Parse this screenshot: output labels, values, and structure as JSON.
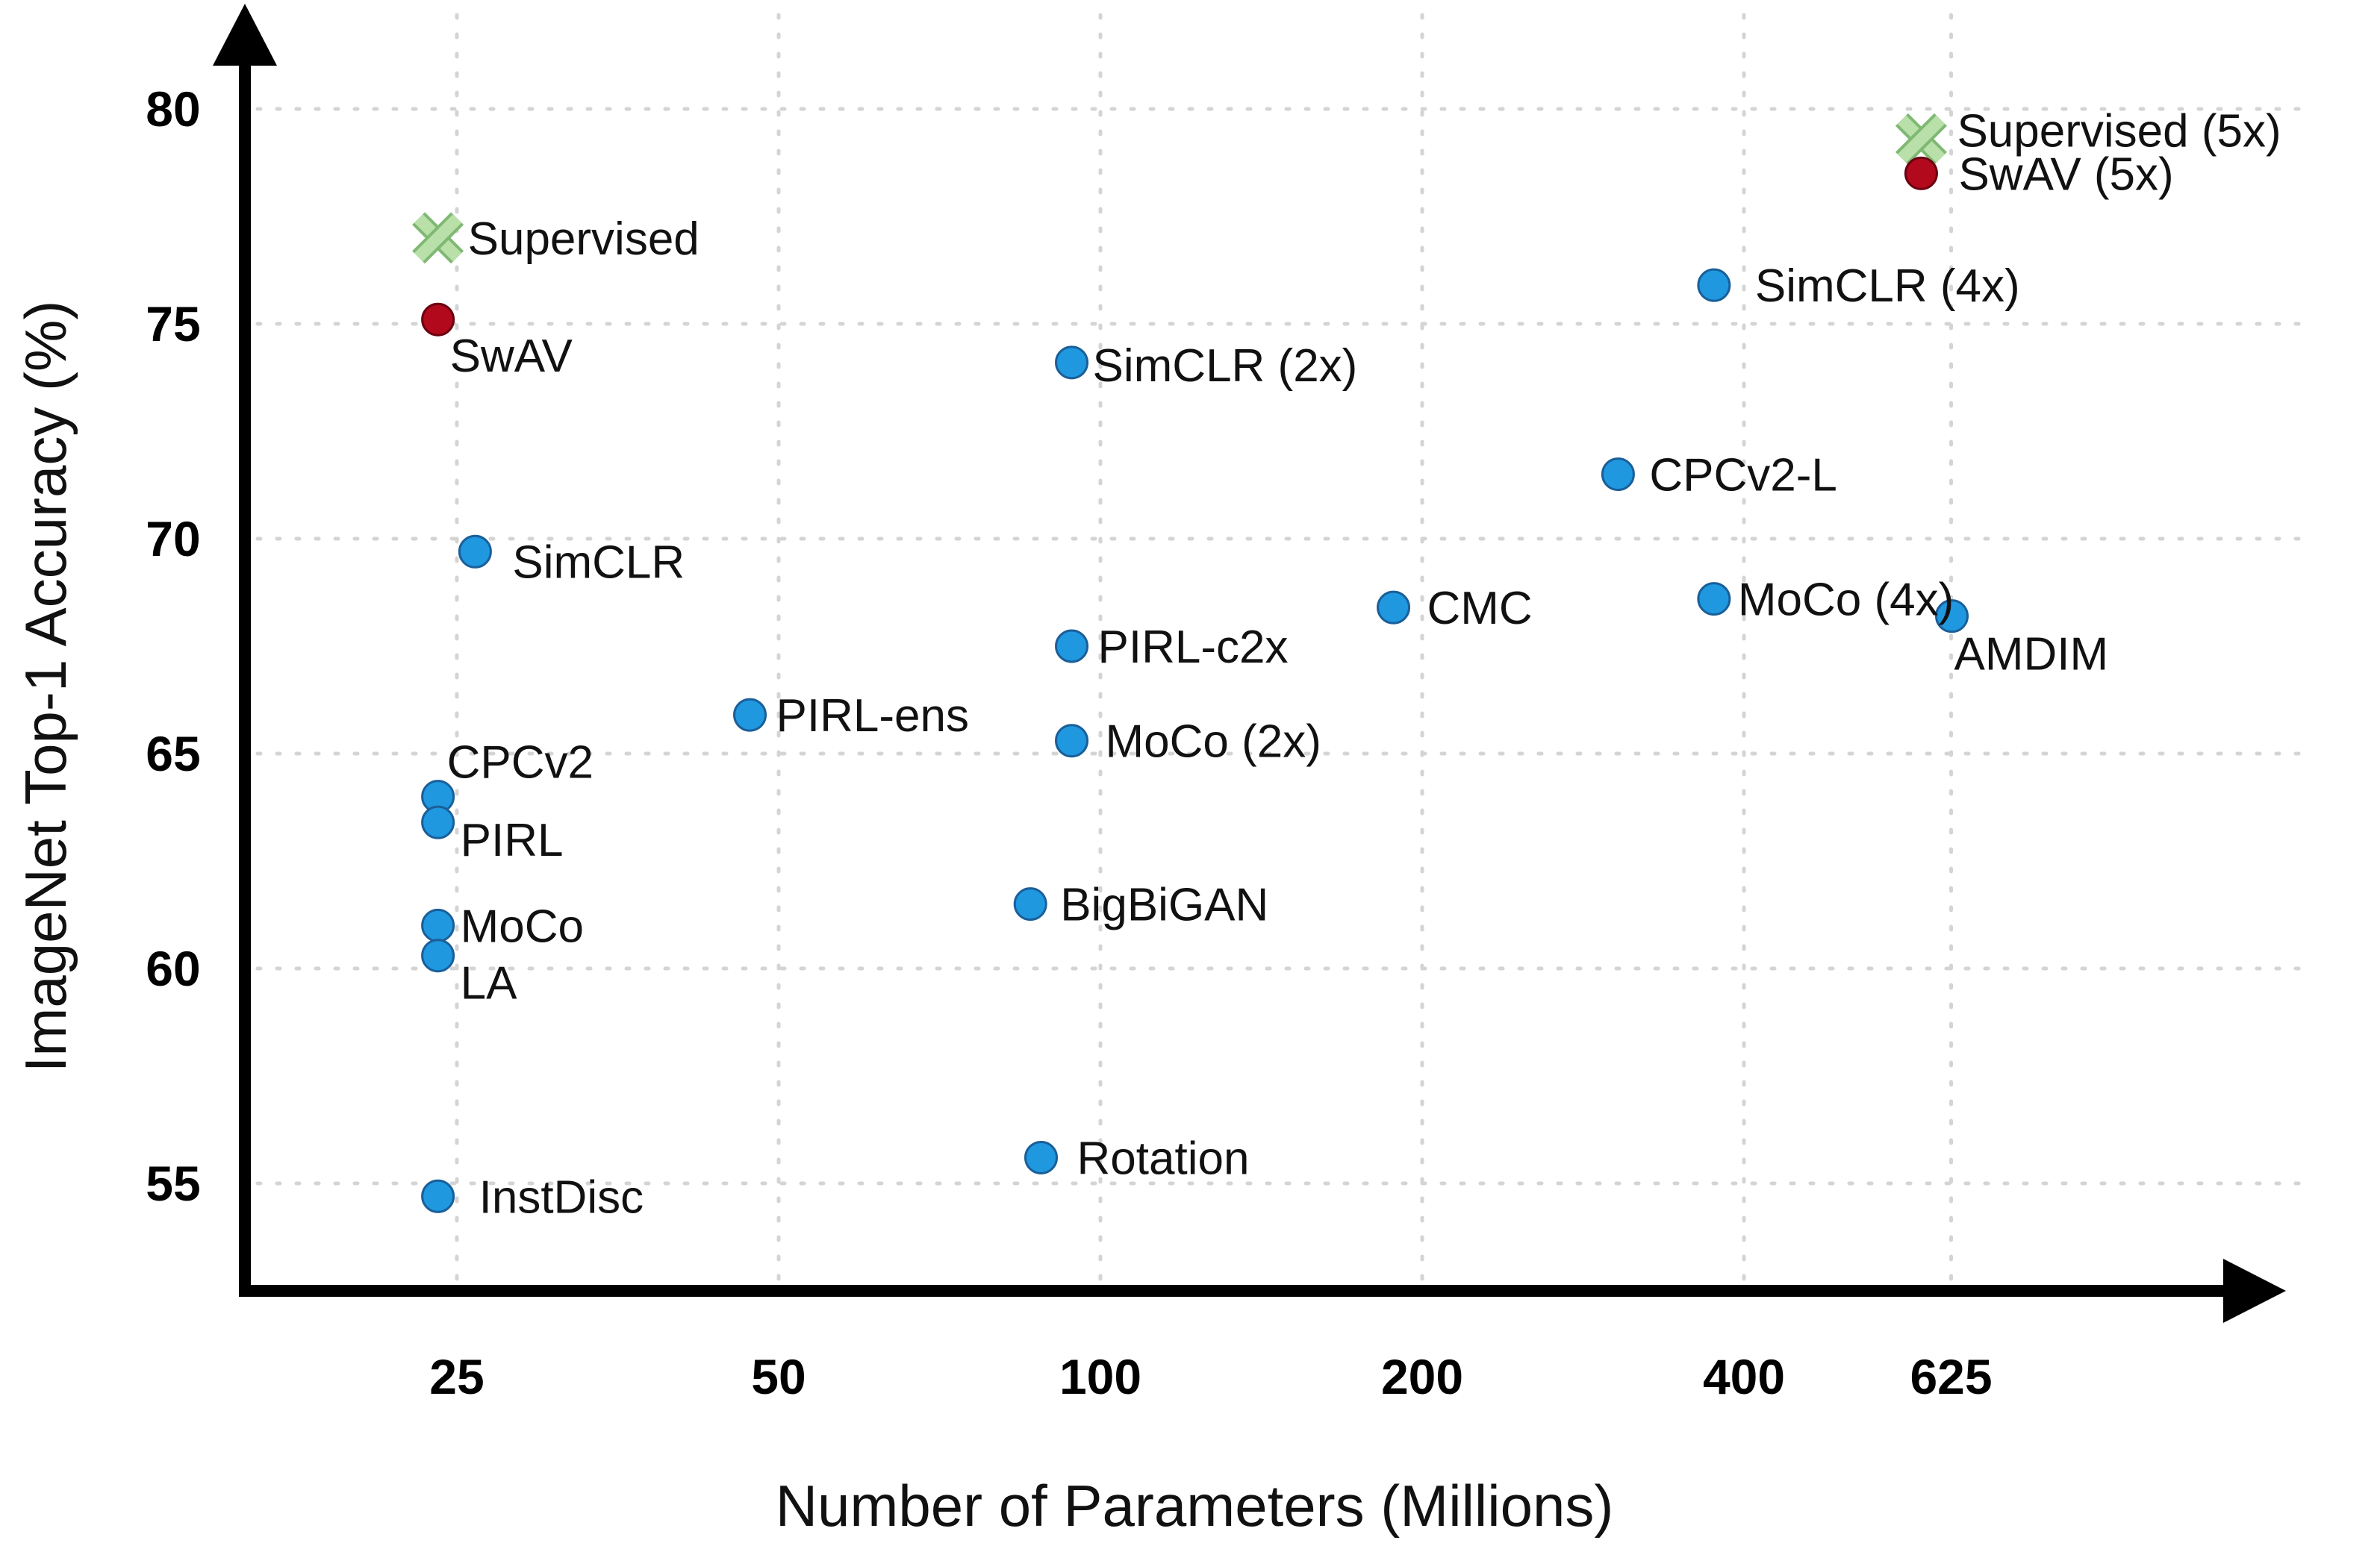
{
  "chart_data": {
    "type": "scatter",
    "xlabel": "Number of Parameters (Millions)",
    "ylabel": "ImageNet Top-1 Accuracy (%)",
    "x_scale": "log2",
    "x_ticks": [
      25,
      50,
      100,
      200,
      400,
      625
    ],
    "y_ticks": [
      55,
      60,
      65,
      70,
      75,
      80
    ],
    "ylim": [
      52,
      82
    ],
    "grid": true,
    "colors": {
      "self_supervised": "#1f98e0",
      "self_supervised_edge": "#1a5f99",
      "swav": "#b2091c",
      "swav_edge": "#6b0010",
      "supervised": "#b8e0a8",
      "supervised_edge": "#7fb873",
      "axis": "#000000",
      "grid": "#d4d4d4"
    },
    "points": [
      {
        "label": "Supervised",
        "x": 24,
        "y": 77.0,
        "group": "supervised"
      },
      {
        "label": "SwAV",
        "x": 24,
        "y": 75.1,
        "group": "swav"
      },
      {
        "label": "SimCLR",
        "x": 26,
        "y": 69.7,
        "group": "self_supervised"
      },
      {
        "label": "CPCv2",
        "x": 24,
        "y": 64.0,
        "group": "self_supervised"
      },
      {
        "label": "PIRL",
        "x": 24,
        "y": 63.4,
        "group": "self_supervised"
      },
      {
        "label": "MoCo",
        "x": 24,
        "y": 61.0,
        "group": "self_supervised"
      },
      {
        "label": "LA",
        "x": 24,
        "y": 60.3,
        "group": "self_supervised"
      },
      {
        "label": "InstDisc",
        "x": 24,
        "y": 54.7,
        "group": "self_supervised"
      },
      {
        "label": "PIRL-ens",
        "x": 47,
        "y": 65.9,
        "group": "self_supervised"
      },
      {
        "label": "SimCLR (2x)",
        "x": 94,
        "y": 74.1,
        "group": "self_supervised"
      },
      {
        "label": "PIRL-c2x",
        "x": 94,
        "y": 67.5,
        "group": "self_supervised"
      },
      {
        "label": "MoCo (2x)",
        "x": 94,
        "y": 65.3,
        "group": "self_supervised"
      },
      {
        "label": "BigBiGAN",
        "x": 86,
        "y": 61.5,
        "group": "self_supervised"
      },
      {
        "label": "Rotation",
        "x": 88,
        "y": 55.6,
        "group": "self_supervised"
      },
      {
        "label": "CMC",
        "x": 188,
        "y": 68.4,
        "group": "self_supervised"
      },
      {
        "label": "CPCv2-L",
        "x": 305,
        "y": 71.5,
        "group": "self_supervised"
      },
      {
        "label": "SimCLR (4x)",
        "x": 375,
        "y": 75.9,
        "group": "self_supervised"
      },
      {
        "label": "MoCo (4x)",
        "x": 375,
        "y": 68.6,
        "group": "self_supervised"
      },
      {
        "label": "AMDIM",
        "x": 626,
        "y": 68.2,
        "group": "self_supervised"
      },
      {
        "label": "Supervised (5x)",
        "x": 586,
        "y": 79.3,
        "group": "supervised"
      },
      {
        "label": "SwAV (5x)",
        "x": 586,
        "y": 78.5,
        "group": "swav"
      }
    ]
  }
}
